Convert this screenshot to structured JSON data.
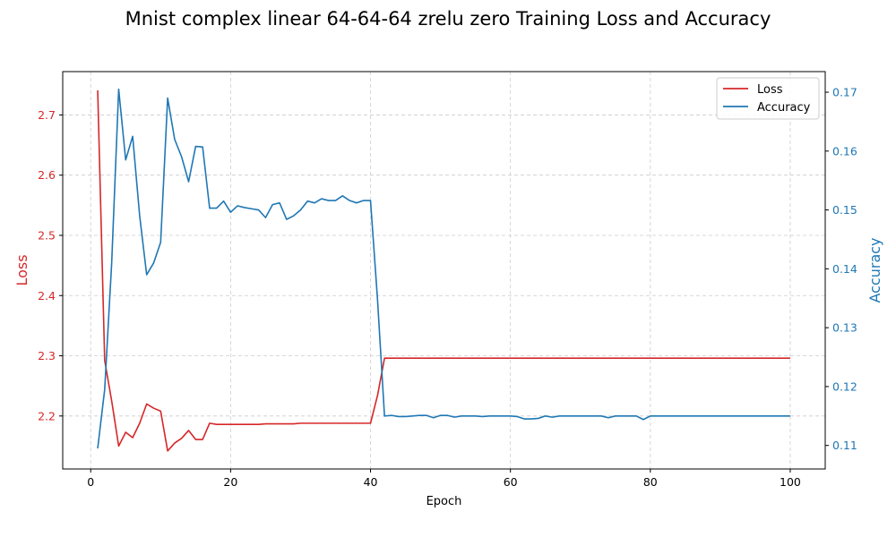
{
  "chart_data": {
    "type": "line",
    "title": "Mnist complex linear 64-64-64 zrelu zero Training Loss and Accuracy",
    "xlabel": "Epoch",
    "ylabel_left": "Loss",
    "ylabel_right": "Accuracy",
    "xlim": [
      -4,
      105
    ],
    "ylim_left": [
      2.112,
      2.772
    ],
    "ylim_right": [
      0.106,
      0.1735
    ],
    "x_ticks": [
      "0",
      "20",
      "40",
      "60",
      "80",
      "100"
    ],
    "y_left_ticks": [
      "2.2",
      "2.3",
      "2.4",
      "2.5",
      "2.6",
      "2.7"
    ],
    "y_right_ticks": [
      "0.11",
      "0.12",
      "0.13",
      "0.14",
      "0.15",
      "0.16",
      "0.17"
    ],
    "grid": true,
    "legend_position": "top-right",
    "colors": {
      "loss": "#d62728",
      "accuracy": "#1f77b4"
    },
    "series": [
      {
        "name": "Loss",
        "axis": "left",
        "x": [
          1,
          2,
          3,
          4,
          5,
          6,
          7,
          8,
          9,
          10,
          11,
          12,
          13,
          14,
          15,
          16,
          17,
          18,
          19,
          20,
          21,
          22,
          23,
          24,
          25,
          26,
          27,
          28,
          29,
          30,
          31,
          32,
          33,
          34,
          35,
          36,
          37,
          38,
          39,
          40,
          41,
          42,
          43,
          44,
          45,
          46,
          47,
          48,
          49,
          50,
          51,
          52,
          53,
          54,
          55,
          56,
          57,
          58,
          59,
          60,
          61,
          62,
          63,
          64,
          65,
          66,
          67,
          68,
          69,
          70,
          71,
          72,
          73,
          74,
          75,
          76,
          77,
          78,
          79,
          80,
          81,
          82,
          83,
          84,
          85,
          86,
          87,
          88,
          89,
          90,
          91,
          92,
          93,
          94,
          95,
          96,
          97,
          98,
          99,
          100
        ],
        "values": [
          2.741,
          2.292,
          2.225,
          2.15,
          2.173,
          2.164,
          2.188,
          2.22,
          2.213,
          2.208,
          2.142,
          2.155,
          2.163,
          2.176,
          2.161,
          2.161,
          2.188,
          2.186,
          2.186,
          2.186,
          2.186,
          2.186,
          2.186,
          2.186,
          2.187,
          2.187,
          2.187,
          2.187,
          2.187,
          2.188,
          2.188,
          2.188,
          2.188,
          2.188,
          2.188,
          2.188,
          2.188,
          2.188,
          2.188,
          2.188,
          2.234,
          2.296,
          2.296,
          2.296,
          2.296,
          2.296,
          2.296,
          2.296,
          2.296,
          2.296,
          2.296,
          2.296,
          2.296,
          2.296,
          2.296,
          2.296,
          2.296,
          2.296,
          2.296,
          2.296,
          2.296,
          2.296,
          2.296,
          2.296,
          2.296,
          2.296,
          2.296,
          2.296,
          2.296,
          2.296,
          2.296,
          2.296,
          2.296,
          2.296,
          2.296,
          2.296,
          2.296,
          2.296,
          2.296,
          2.296,
          2.296,
          2.296,
          2.296,
          2.296,
          2.296,
          2.296,
          2.296,
          2.296,
          2.296,
          2.296,
          2.296,
          2.296,
          2.296,
          2.296,
          2.296,
          2.296,
          2.296,
          2.296,
          2.296,
          2.296
        ]
      },
      {
        "name": "Accuracy",
        "axis": "right",
        "x": [
          1,
          2,
          3,
          4,
          5,
          6,
          7,
          8,
          9,
          10,
          11,
          12,
          13,
          14,
          15,
          16,
          17,
          18,
          19,
          20,
          21,
          22,
          23,
          24,
          25,
          26,
          27,
          28,
          29,
          30,
          31,
          32,
          33,
          34,
          35,
          36,
          37,
          38,
          39,
          40,
          41,
          42,
          43,
          44,
          45,
          46,
          47,
          48,
          49,
          50,
          51,
          52,
          53,
          54,
          55,
          56,
          57,
          58,
          59,
          60,
          61,
          62,
          63,
          64,
          65,
          66,
          67,
          68,
          69,
          70,
          71,
          72,
          73,
          74,
          75,
          76,
          77,
          78,
          79,
          80,
          81,
          82,
          83,
          84,
          85,
          86,
          87,
          88,
          89,
          90,
          91,
          92,
          93,
          94,
          95,
          96,
          97,
          98,
          99,
          100
        ],
        "values": [
          0.1095,
          0.1195,
          0.141,
          0.1705,
          0.1585,
          0.1625,
          0.149,
          0.139,
          0.141,
          0.1445,
          0.169,
          0.162,
          0.159,
          0.1548,
          0.1608,
          0.1607,
          0.1503,
          0.1503,
          0.1515,
          0.1496,
          0.1507,
          0.1504,
          0.1502,
          0.15,
          0.1487,
          0.1509,
          0.1512,
          0.1484,
          0.149,
          0.15,
          0.1515,
          0.1512,
          0.1519,
          0.1516,
          0.1516,
          0.1524,
          0.1516,
          0.1512,
          0.1516,
          0.1516,
          0.1348,
          0.115,
          0.1151,
          0.1149,
          0.1149,
          0.115,
          0.1151,
          0.1151,
          0.1147,
          0.1151,
          0.1151,
          0.1148,
          0.115,
          0.115,
          0.115,
          0.1149,
          0.115,
          0.115,
          0.115,
          0.115,
          0.1149,
          0.1145,
          0.1145,
          0.1146,
          0.115,
          0.1148,
          0.115,
          0.115,
          0.115,
          0.115,
          0.115,
          0.115,
          0.115,
          0.1147,
          0.115,
          0.115,
          0.115,
          0.115,
          0.1144,
          0.115,
          0.115,
          0.115,
          0.115,
          0.115,
          0.115,
          0.115,
          0.115,
          0.115,
          0.115,
          0.115,
          0.115,
          0.115,
          0.115,
          0.115,
          0.115,
          0.115,
          0.115,
          0.115,
          0.115,
          0.115
        ]
      }
    ]
  }
}
